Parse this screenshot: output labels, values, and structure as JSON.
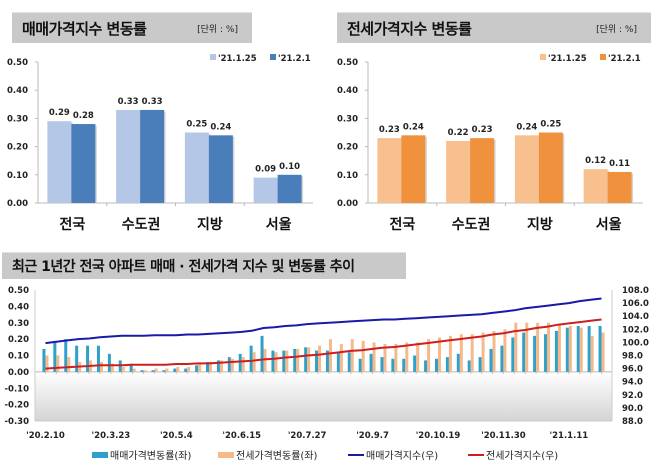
{
  "panels": {
    "left": {
      "title": "매매가격지수 변동률",
      "unit": "[단위 : %]"
    },
    "right": {
      "title": "전세가격지수 변동률",
      "unit": "[단위 : %]"
    },
    "bottom": {
      "title": "최근 1년간 전국 아파트 매매 · 전세가격 지수 및 변동률 추이"
    }
  },
  "colors": {
    "sale_prev": "#b4c7e7",
    "sale_curr": "#4a7ebb",
    "jeonse_prev": "#f9c08f",
    "jeonse_curr": "#f0913e",
    "sale_rate": "#2fa0c9",
    "jeonse_rate": "#f5b98a",
    "sale_index": "#1a1aa8",
    "jeonse_index": "#cc2020"
  },
  "chart_data": [
    {
      "type": "bar",
      "title": "매매가격지수 변동률",
      "categories": [
        "전국",
        "수도권",
        "지방",
        "서울"
      ],
      "series": [
        {
          "name": "'21.1.25",
          "values": [
            0.29,
            0.33,
            0.25,
            0.09
          ]
        },
        {
          "name": "'21.2.1",
          "values": [
            0.28,
            0.33,
            0.24,
            0.1
          ]
        }
      ],
      "yticks": [
        "0.50",
        "0.40",
        "0.30",
        "0.20",
        "0.10",
        "0.00"
      ],
      "ylim": [
        0,
        0.5
      ],
      "legend": "top-right"
    },
    {
      "type": "bar",
      "title": "전세가격지수 변동률",
      "categories": [
        "전국",
        "수도권",
        "지방",
        "서울"
      ],
      "series": [
        {
          "name": "'21.1.25",
          "values": [
            0.23,
            0.22,
            0.24,
            0.12
          ]
        },
        {
          "name": "'21.2.1",
          "values": [
            0.24,
            0.23,
            0.25,
            0.11
          ]
        }
      ],
      "yticks": [
        "0.50",
        "0.40",
        "0.30",
        "0.20",
        "0.10",
        "0.00"
      ],
      "ylim": [
        0,
        0.5
      ],
      "legend": "top-right"
    },
    {
      "type": "bar+line",
      "title": "최근 1년간 전국 아파트 매매 · 전세가격 지수 및 변동률 추이",
      "xticks": [
        "'20.2.10",
        "'20.3.23",
        "'20.5.4",
        "'20.6.15",
        "'20.7.27",
        "'20.9.7",
        "'20.10.19",
        "'20.11.30",
        "'21.1.11"
      ],
      "yticks_left": [
        "0.50",
        "0.40",
        "0.30",
        "0.20",
        "0.10",
        "0.00",
        "-0.10",
        "-0.20",
        "-0.30"
      ],
      "yticks_right": [
        "108.0",
        "106.0",
        "104.0",
        "102.0",
        "100.0",
        "98.0",
        "96.0",
        "94.0",
        "92.0",
        "90.0",
        "88.0"
      ],
      "ylim_left": [
        -0.3,
        0.5
      ],
      "ylim_right": [
        88,
        108
      ],
      "legend": "bottom",
      "series": [
        {
          "name": "매매가격변동률(좌)",
          "type": "bar",
          "axis": "left",
          "values": [
            0.14,
            0.18,
            0.2,
            0.16,
            0.16,
            0.16,
            0.11,
            0.07,
            0.05,
            0.01,
            0.01,
            0.01,
            0.02,
            0.02,
            0.04,
            0.06,
            0.07,
            0.09,
            0.11,
            0.16,
            0.22,
            0.13,
            0.13,
            0.14,
            0.15,
            0.13,
            0.13,
            0.12,
            0.12,
            0.08,
            0.11,
            0.09,
            0.08,
            0.08,
            0.1,
            0.07,
            0.08,
            0.09,
            0.11,
            0.07,
            0.09,
            0.14,
            0.16,
            0.21,
            0.24,
            0.22,
            0.23,
            0.25,
            0.27,
            0.28,
            0.28,
            0.28
          ]
        },
        {
          "name": "전세가격변동률(좌)",
          "type": "bar",
          "axis": "left",
          "values": [
            0.1,
            0.1,
            0.09,
            0.06,
            0.07,
            0.06,
            0.05,
            0.03,
            0.02,
            0.01,
            0.02,
            0.02,
            0.03,
            0.03,
            0.05,
            0.06,
            0.07,
            0.08,
            0.09,
            0.12,
            0.14,
            0.12,
            0.13,
            0.14,
            0.15,
            0.16,
            0.2,
            0.17,
            0.2,
            0.19,
            0.18,
            0.17,
            0.17,
            0.18,
            0.18,
            0.2,
            0.21,
            0.22,
            0.23,
            0.23,
            0.24,
            0.25,
            0.26,
            0.3,
            0.3,
            0.3,
            0.3,
            0.29,
            0.28,
            0.27,
            0.22,
            0.24
          ]
        },
        {
          "name": "매매가격지수(우)",
          "type": "line",
          "axis": "right",
          "values": [
            99.9,
            100.1,
            100.3,
            100.5,
            100.6,
            100.8,
            100.9,
            101.0,
            101.0,
            101.0,
            101.1,
            101.1,
            101.1,
            101.2,
            101.2,
            101.3,
            101.4,
            101.5,
            101.6,
            101.8,
            102.2,
            102.3,
            102.5,
            102.6,
            102.8,
            102.9,
            103.0,
            103.1,
            103.2,
            103.3,
            103.4,
            103.5,
            103.5,
            103.6,
            103.7,
            103.8,
            103.9,
            104.0,
            104.1,
            104.2,
            104.3,
            104.5,
            104.7,
            104.9,
            105.2,
            105.4,
            105.6,
            105.8,
            106.0,
            106.3,
            106.5,
            106.7
          ]
        },
        {
          "name": "전세가격지수(우)",
          "type": "line",
          "axis": "right",
          "values": [
            96.0,
            96.1,
            96.2,
            96.3,
            96.4,
            96.5,
            96.5,
            96.5,
            96.6,
            96.6,
            96.6,
            96.6,
            96.7,
            96.7,
            96.8,
            96.8,
            96.9,
            97.0,
            97.1,
            97.2,
            97.4,
            97.5,
            97.7,
            97.8,
            98.0,
            98.1,
            98.3,
            98.5,
            98.7,
            98.8,
            99.0,
            99.2,
            99.3,
            99.5,
            99.7,
            99.9,
            100.1,
            100.3,
            100.5,
            100.7,
            100.9,
            101.2,
            101.4,
            101.7,
            101.9,
            102.2,
            102.4,
            102.7,
            102.9,
            103.1,
            103.3,
            103.5
          ]
        }
      ]
    }
  ]
}
